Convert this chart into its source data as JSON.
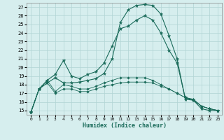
{
  "title": "",
  "xlabel": "Humidex (Indice chaleur)",
  "bg_color": "#d6eeee",
  "line_color": "#1a6b5a",
  "grid_color": "#b0d4d4",
  "xticks": [
    0,
    1,
    2,
    3,
    4,
    5,
    6,
    7,
    8,
    9,
    10,
    11,
    12,
    13,
    14,
    15,
    16,
    17,
    18,
    19,
    20,
    21,
    22,
    23
  ],
  "yticks": [
    15,
    16,
    17,
    18,
    19,
    20,
    21,
    22,
    23,
    24,
    25,
    26,
    27
  ],
  "ylim": [
    14.5,
    27.5
  ],
  "xlim": [
    -0.5,
    23.5
  ],
  "series": [
    [
      14.8,
      17.5,
      18.2,
      18.8,
      18.2,
      18.2,
      18.3,
      18.5,
      18.7,
      19.3,
      21.0,
      25.2,
      26.7,
      27.2,
      27.3,
      27.2,
      26.2,
      23.7,
      21.0,
      16.3,
      16.2,
      15.2,
      15.0,
      15.0
    ],
    [
      14.8,
      17.5,
      18.5,
      19.2,
      20.8,
      19.0,
      18.7,
      19.2,
      19.5,
      20.5,
      22.5,
      24.5,
      24.8,
      25.5,
      26.0,
      25.5,
      24.0,
      22.0,
      20.5,
      16.5,
      16.3,
      15.5,
      15.2,
      15.0
    ],
    [
      14.8,
      17.5,
      18.5,
      17.2,
      18.0,
      17.8,
      17.5,
      17.5,
      17.8,
      18.2,
      18.5,
      18.8,
      18.8,
      18.8,
      18.8,
      18.5,
      18.0,
      17.5,
      17.0,
      16.5,
      16.2,
      15.5,
      15.2,
      15.0
    ],
    [
      14.8,
      17.5,
      18.2,
      17.0,
      17.5,
      17.5,
      17.2,
      17.2,
      17.5,
      17.8,
      18.0,
      18.2,
      18.3,
      18.3,
      18.3,
      18.2,
      17.8,
      17.5,
      17.0,
      16.5,
      16.2,
      15.5,
      15.2,
      15.0
    ]
  ],
  "markers": [
    "*",
    "*",
    "D",
    "D"
  ],
  "linewidths": [
    0.8,
    0.8,
    0.6,
    0.6
  ],
  "markersizes": [
    3.5,
    3.5,
    1.8,
    1.8
  ]
}
